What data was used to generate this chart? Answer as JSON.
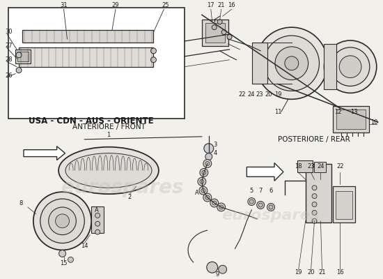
{
  "bg_color": "#f2f0eb",
  "line_color": "#2a2a2a",
  "text_color": "#1a1a1a",
  "watermark_color": "#c5bfb2",
  "usa_cdn_label": "USA - CDN - AUS - ORIENTE",
  "front_label": "ANTERIORE / FRONT",
  "rear_label": "POSTERIORE / REAR",
  "figsize": [
    5.5,
    4.0
  ],
  "dpi": 100
}
